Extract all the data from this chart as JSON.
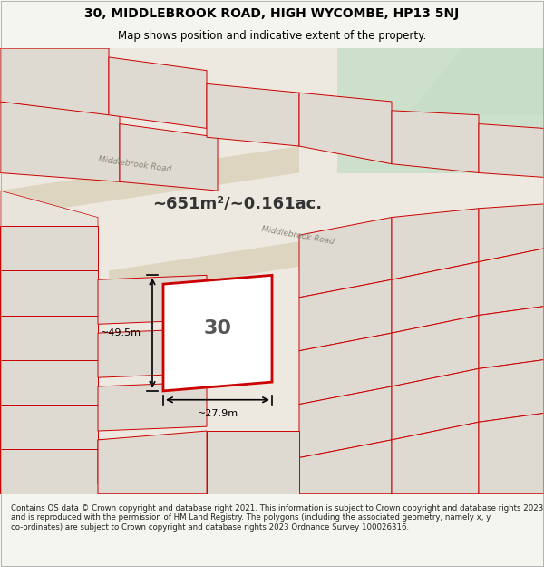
{
  "title_line1": "30, MIDDLEBROOK ROAD, HIGH WYCOMBE, HP13 5NJ",
  "title_line2": "Map shows position and indicative extent of the property.",
  "area_text": "~651m²/~0.161ac.",
  "width_label": "~27.9m",
  "height_label": "~49.5m",
  "number_label": "30",
  "road_label1": "Middlebrook Road",
  "road_label2": "Middlebrook Road",
  "footer_text": "Contains OS data © Crown copyright and database right 2021. This information is subject to Crown copyright and database rights 2023 and is reproduced with the permission of HM Land Registry. The polygons (including the associated geometry, namely x, y co-ordinates) are subject to Crown copyright and database rights 2023 Ordnance Survey 100026316.",
  "bg_color": "#f0ede8",
  "map_bg": "#f0ede8",
  "green_area": "#dce8dc",
  "road_color": "#e0d8c8",
  "property_outline_color": "#cc0000",
  "property_fill_color": "none",
  "other_outline_color": "#cc0000",
  "figsize": [
    6.0,
    6.25
  ],
  "dpi": 100
}
